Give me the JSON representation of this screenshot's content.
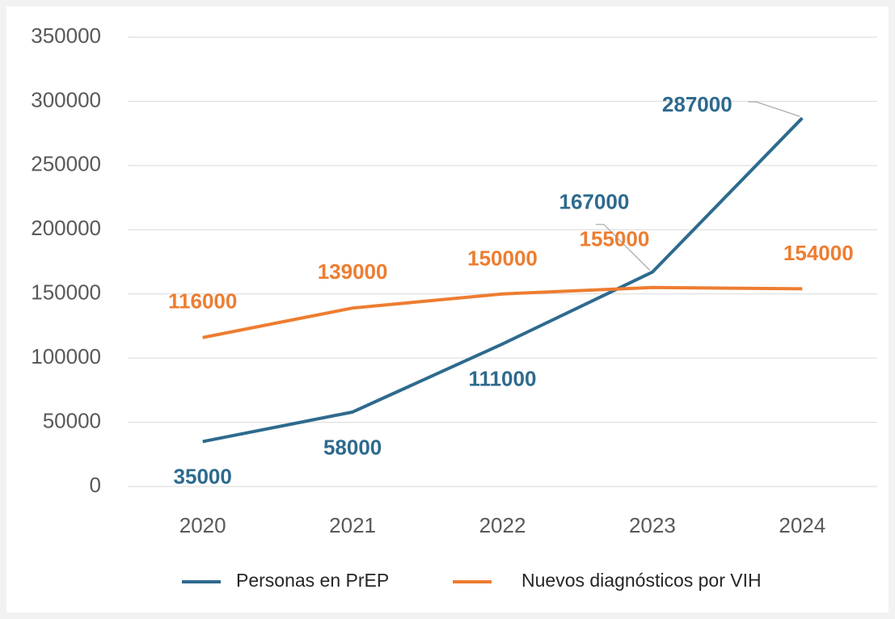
{
  "chart_data": {
    "type": "line",
    "categories": [
      "2020",
      "2021",
      "2022",
      "2023",
      "2024"
    ],
    "series": [
      {
        "name": "Personas en PrEP",
        "color": "#2e6a8e",
        "values": [
          35000,
          58000,
          111000,
          167000,
          287000
        ]
      },
      {
        "name": "Nuevos diagnósticos por VIH",
        "color": "#ed7d31",
        "values": [
          116000,
          139000,
          150000,
          155000,
          154000
        ]
      }
    ],
    "ylim": [
      0,
      350000
    ],
    "yticks": [
      0,
      50000,
      100000,
      150000,
      200000,
      250000,
      300000,
      350000
    ],
    "grid": true,
    "legend": "bottom"
  }
}
